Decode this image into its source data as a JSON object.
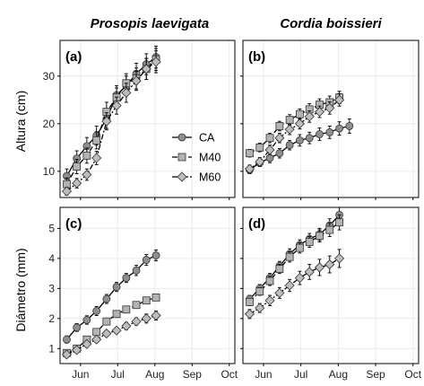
{
  "columns": [
    "Prosopis laevigata",
    "Cordia boissieri"
  ],
  "rows": [
    "Altura (cm)",
    "Diámetro (mm)"
  ],
  "x_ticks": [
    {
      "label": "Jun",
      "value": 6.0
    },
    {
      "label": "Jul",
      "value": 7.0
    },
    {
      "label": "Aug",
      "value": 8.0
    },
    {
      "label": "Sep",
      "value": 9.0
    },
    {
      "label": "Oct",
      "value": 10.0
    }
  ],
  "legend": [
    "CA",
    "M40",
    "M60"
  ],
  "colors": {
    "CA": "#8f8f8f",
    "M40": "#b3b3b3",
    "M60": "#bdbdbd",
    "line": "#000000",
    "grid": "#ebebeb"
  },
  "chart_data": [
    {
      "type": "line",
      "panel": "(a)",
      "title": "Prosopis laevigata",
      "ylabel": "Altura (cm)",
      "xlabel": "",
      "xlim": [
        5.45,
        10.15
      ],
      "ylim": [
        4.5,
        37.5
      ],
      "yticks": [
        10,
        20,
        30
      ],
      "x": [
        5.63,
        5.9,
        6.17,
        6.43,
        6.7,
        6.97,
        7.23,
        7.5,
        7.77,
        8.03,
        8.3,
        8.57,
        8.83,
        9.1,
        9.37,
        9.63,
        9.9
      ],
      "series": [
        {
          "name": "CA",
          "values": [
            9,
            12.7,
            15.3,
            17.5,
            21,
            26,
            28,
            30.5,
            32.5,
            34,
            null,
            null,
            null,
            null,
            null,
            null,
            null
          ],
          "err": [
            1.5,
            1.6,
            1.8,
            2,
            2,
            2,
            2,
            2.2,
            2.2,
            2.3,
            null,
            null,
            null,
            null,
            null,
            null,
            null
          ]
        },
        {
          "name": "M40",
          "values": [
            7.3,
            11,
            13.3,
            16.5,
            22.5,
            25.5,
            28.5,
            29.5,
            31.5,
            33.5,
            null,
            null,
            null,
            null,
            null,
            null,
            null
          ],
          "err": [
            1.3,
            1.5,
            1.6,
            1.8,
            2,
            2,
            2,
            2.2,
            2.2,
            2.3,
            null,
            null,
            null,
            null,
            null,
            null,
            null
          ]
        },
        {
          "name": "M60",
          "values": [
            5.8,
            7.5,
            9.3,
            12.8,
            20.5,
            23.8,
            26.5,
            29,
            31.5,
            33,
            null,
            null,
            null,
            null,
            null,
            null,
            null
          ],
          "err": [
            0.8,
            1,
            1.2,
            1.4,
            1.8,
            1.8,
            2,
            2,
            2.2,
            2.3,
            null,
            null,
            null,
            null,
            null,
            null,
            null
          ]
        }
      ]
    },
    {
      "type": "line",
      "panel": "(b)",
      "title": "Cordia boissieri",
      "ylabel": "",
      "xlabel": "",
      "xlim": [
        5.45,
        10.15
      ],
      "ylim": [
        4.5,
        37.5
      ],
      "yticks": [
        10,
        20,
        30
      ],
      "x": [
        5.63,
        5.9,
        6.17,
        6.43,
        6.7,
        6.97,
        7.23,
        7.5,
        7.77,
        8.03,
        8.3,
        8.57,
        8.83,
        9.1,
        9.37,
        9.63,
        9.9
      ],
      "series": [
        {
          "name": "CA",
          "values": [
            10.3,
            11.8,
            12.8,
            13.8,
            15.5,
            16.5,
            17,
            17.8,
            18.2,
            19,
            19.5,
            null,
            null,
            null,
            null,
            null,
            null
          ],
          "err": [
            0.8,
            0.8,
            1,
            1,
            1,
            1.2,
            1.2,
            1.3,
            1.3,
            1.4,
            1.5,
            null,
            null,
            null,
            null,
            null,
            null
          ]
        },
        {
          "name": "M40",
          "values": [
            13.8,
            15,
            17,
            19.5,
            20.8,
            22,
            23,
            24,
            24.5,
            25.5,
            null,
            null,
            null,
            null,
            null,
            null,
            null
          ],
          "err": [
            0.8,
            0.9,
            1,
            1,
            1.1,
            1.1,
            1.2,
            1.2,
            1.3,
            1.3,
            null,
            null,
            null,
            null,
            null,
            null,
            null
          ]
        },
        {
          "name": "M60",
          "values": [
            10.5,
            12,
            14.5,
            17,
            18.8,
            20,
            21.5,
            22.5,
            23.3,
            25,
            null,
            null,
            null,
            null,
            null,
            null,
            null
          ],
          "err": [
            0.8,
            0.9,
            1,
            1,
            1.1,
            1.1,
            1.2,
            1.2,
            1.3,
            1.3,
            null,
            null,
            null,
            null,
            null,
            null,
            null
          ]
        }
      ]
    },
    {
      "type": "line",
      "panel": "(c)",
      "title": "",
      "ylabel": "Diámetro (mm)",
      "xlabel": "",
      "xlim": [
        5.45,
        10.15
      ],
      "ylim": [
        0.5,
        5.7
      ],
      "yticks": [
        1,
        2,
        3,
        4,
        5
      ],
      "x": [
        5.63,
        5.9,
        6.17,
        6.43,
        6.7,
        6.97,
        7.23,
        7.5,
        7.77,
        8.03,
        8.3,
        8.57,
        8.83,
        9.1,
        9.37,
        9.63,
        9.9
      ],
      "series": [
        {
          "name": "CA",
          "values": [
            1.3,
            1.7,
            1.95,
            2.25,
            2.65,
            3.05,
            3.35,
            3.6,
            3.95,
            4.1,
            null,
            null,
            null,
            null,
            null,
            null,
            null
          ],
          "err": [
            0.12,
            0.13,
            0.14,
            0.15,
            0.15,
            0.15,
            0.15,
            0.17,
            0.18,
            0.18,
            null,
            null,
            null,
            null,
            null,
            null,
            null
          ]
        },
        {
          "name": "M40",
          "values": [
            0.85,
            1.0,
            1.3,
            1.55,
            1.9,
            2.15,
            2.3,
            2.45,
            2.6,
            2.7,
            null,
            null,
            null,
            null,
            null,
            null,
            null
          ],
          "err": [
            0.08,
            0.08,
            0.1,
            0.1,
            0.1,
            0.1,
            0.1,
            0.1,
            0.1,
            0.1,
            null,
            null,
            null,
            null,
            null,
            null,
            null
          ]
        },
        {
          "name": "M60",
          "values": [
            0.8,
            0.95,
            1.15,
            1.3,
            1.5,
            1.6,
            1.75,
            1.9,
            2.0,
            2.1,
            null,
            null,
            null,
            null,
            null,
            null,
            null
          ],
          "err": [
            0.08,
            0.08,
            0.1,
            0.1,
            0.1,
            0.1,
            0.12,
            0.12,
            0.15,
            0.15,
            null,
            null,
            null,
            null,
            null,
            null,
            null
          ]
        }
      ]
    },
    {
      "type": "line",
      "panel": "(d)",
      "title": "",
      "ylabel": "",
      "xlabel": "",
      "xlim": [
        5.45,
        10.15
      ],
      "ylim": [
        0.5,
        5.7
      ],
      "yticks": [
        1,
        2,
        3,
        4,
        5
      ],
      "x": [
        5.63,
        5.9,
        6.17,
        6.43,
        6.7,
        6.97,
        7.23,
        7.5,
        7.77,
        8.03,
        8.3,
        8.57,
        8.83,
        9.1,
        9.37,
        9.63,
        9.9
      ],
      "series": [
        {
          "name": "CA",
          "values": [
            2.65,
            3.0,
            3.35,
            3.75,
            4.15,
            4.45,
            4.65,
            4.8,
            5.1,
            5.45,
            null,
            null,
            null,
            null,
            null,
            null,
            null
          ],
          "err": [
            0.12,
            0.13,
            0.15,
            0.15,
            0.17,
            0.17,
            0.18,
            0.2,
            0.22,
            0.25,
            null,
            null,
            null,
            null,
            null,
            null,
            null
          ]
        },
        {
          "name": "M40",
          "values": [
            2.55,
            2.9,
            3.25,
            3.65,
            4.05,
            4.35,
            4.55,
            4.75,
            4.95,
            5.2,
            null,
            null,
            null,
            null,
            null,
            null,
            null
          ],
          "err": [
            0.12,
            0.13,
            0.15,
            0.15,
            0.17,
            0.17,
            0.18,
            0.2,
            0.22,
            0.25,
            null,
            null,
            null,
            null,
            null,
            null,
            null
          ]
        },
        {
          "name": "M60",
          "values": [
            2.15,
            2.35,
            2.6,
            2.85,
            3.1,
            3.35,
            3.55,
            3.7,
            3.8,
            4.0,
            null,
            null,
            null,
            null,
            null,
            null,
            null
          ],
          "err": [
            0.15,
            0.15,
            0.17,
            0.18,
            0.2,
            0.22,
            0.25,
            0.27,
            0.28,
            0.3,
            null,
            null,
            null,
            null,
            null,
            null,
            null
          ]
        }
      ]
    }
  ]
}
